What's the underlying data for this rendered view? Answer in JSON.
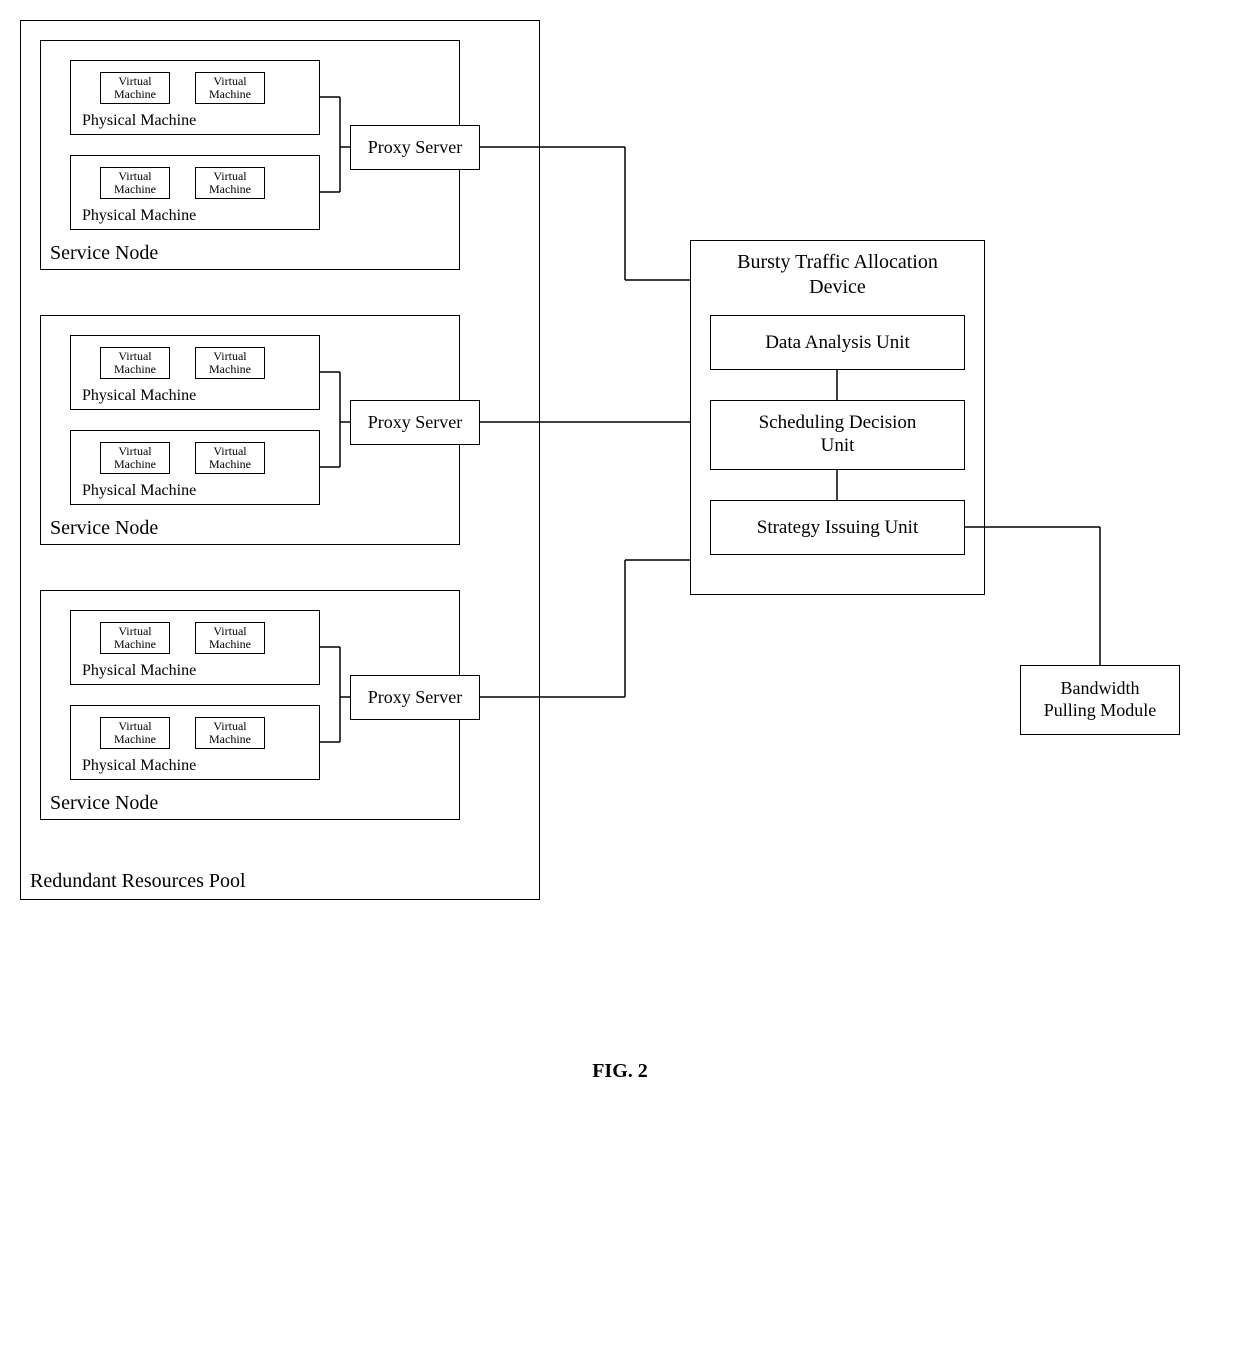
{
  "diagram": {
    "type": "flowchart",
    "background_color": "#ffffff",
    "border_color": "#000000",
    "text_color": "#000000",
    "line_width": 1.5,
    "font_family": "Times New Roman",
    "caption": "FIG. 2",
    "caption_fontsize": 20,
    "pool_label": "Redundant Resources Pool",
    "pool_label_fontsize": 20,
    "service_node_label": "Service Node",
    "service_node_fontsize": 20,
    "physical_machine_label": "Physical Machine",
    "physical_machine_fontsize": 16,
    "virtual_machine_label": "Virtual\nMachine",
    "virtual_machine_fontsize": 12,
    "proxy_server_label": "Proxy Server",
    "proxy_server_fontsize": 18,
    "device_title": "Bursty Traffic Allocation\nDevice",
    "device_title_fontsize": 20,
    "data_analysis_label": "Data Analysis Unit",
    "data_analysis_fontsize": 19,
    "scheduling_label": "Scheduling Decision\nUnit",
    "scheduling_fontsize": 19,
    "strategy_label": "Strategy Issuing Unit",
    "strategy_fontsize": 19,
    "bandwidth_label": "Bandwidth\nPulling Module",
    "bandwidth_fontsize": 18
  }
}
